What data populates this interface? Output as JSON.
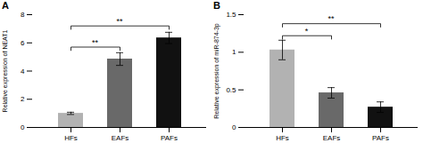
{
  "chart_data": [
    {
      "type": "bar",
      "title": "A",
      "categories": [
        "HFs",
        "EAFs",
        "PAFs"
      ],
      "values": [
        1.0,
        4.85,
        6.35
      ],
      "errors": [
        0.08,
        0.45,
        0.4
      ],
      "colors": [
        "#b2b2b2",
        "#696969",
        "#111111"
      ],
      "ylabel": "Relative expression of NEAT1",
      "ylim": [
        0,
        8
      ],
      "yticks": [
        0,
        2,
        4,
        6,
        8
      ],
      "annotations": [
        {
          "text": "**",
          "x1": "HFs",
          "x2": "EAFs",
          "y": 5.7
        },
        {
          "text": "**",
          "x1": "HFs",
          "x2": "PAFs",
          "y": 7.2
        }
      ]
    },
    {
      "type": "bar",
      "title": "B",
      "categories": [
        "HFs",
        "EAFs",
        "PAFs"
      ],
      "values": [
        1.03,
        0.46,
        0.27
      ],
      "errors": [
        0.13,
        0.07,
        0.07
      ],
      "colors": [
        "#b2b2b2",
        "#696969",
        "#111111"
      ],
      "ylabel": "Relative expression of miR-874-3p",
      "ylim": [
        0,
        1.5
      ],
      "yticks": [
        0,
        0.5,
        1,
        1.5
      ],
      "annotations": [
        {
          "text": "*",
          "x1": "HFs",
          "x2": "EAFs",
          "y": 1.22
        },
        {
          "text": "**",
          "x1": "HFs",
          "x2": "PAFs",
          "y": 1.38
        }
      ]
    }
  ]
}
